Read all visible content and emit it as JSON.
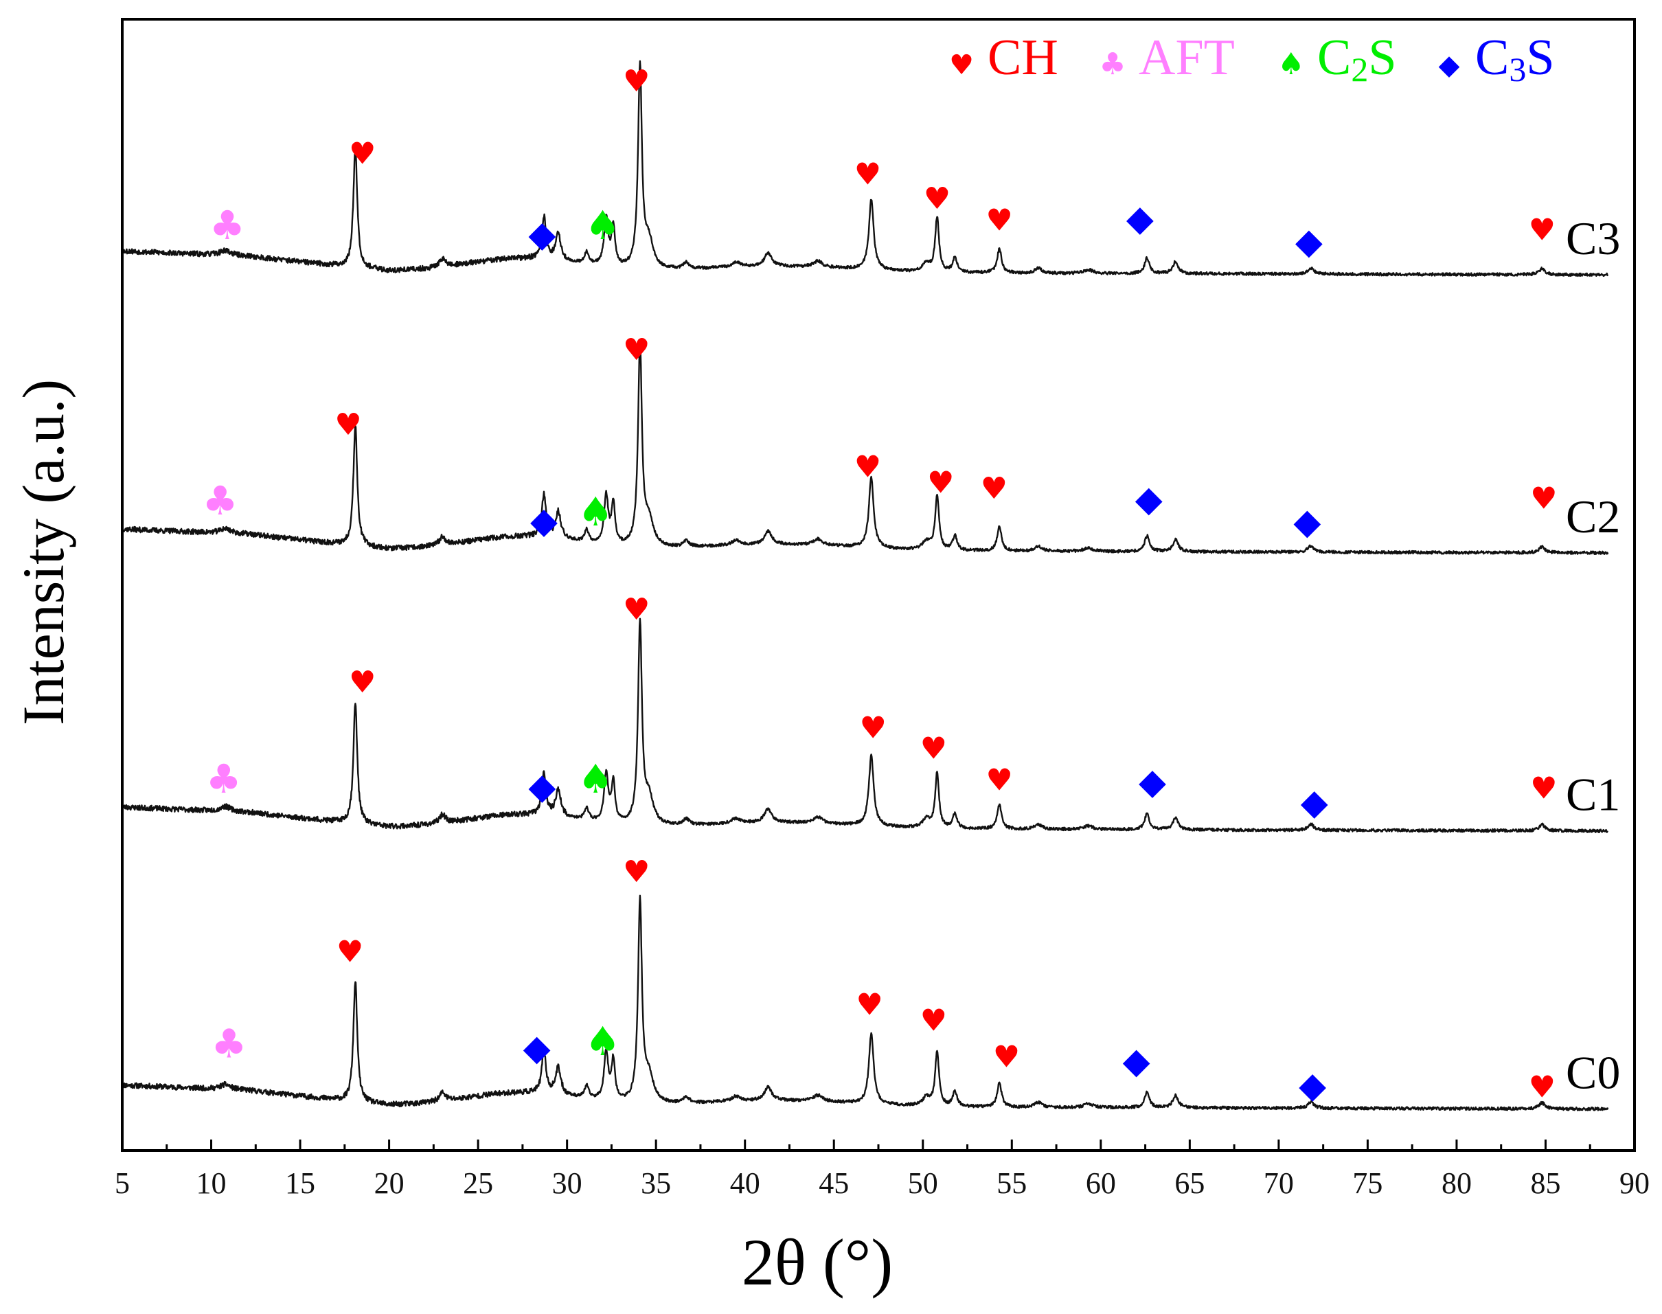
{
  "chart_data": {
    "type": "line",
    "title": "",
    "xlabel": "2θ (°)",
    "ylabel": "Intensity (a.u.)",
    "xlim": [
      5,
      90
    ],
    "xticks": [
      5,
      10,
      15,
      20,
      25,
      30,
      35,
      40,
      45,
      50,
      55,
      60,
      65,
      70,
      75,
      80,
      85,
      90
    ],
    "xtick_labels": [
      "5",
      "10",
      "15",
      "20",
      "25",
      "30",
      "35",
      "40",
      "45",
      "50",
      "55",
      "60",
      "65",
      "70",
      "75",
      "80",
      "85",
      "90"
    ],
    "yticks": "none",
    "grid": false,
    "legend_position": "top-right",
    "legend": [
      {
        "symbol": "heart",
        "label_main": "CH",
        "label_sub": "",
        "label_tail": "",
        "color": "#ff0000"
      },
      {
        "symbol": "club",
        "label_main": "AFT",
        "label_sub": "",
        "label_tail": "",
        "color": "#ff7fff"
      },
      {
        "symbol": "spade",
        "label_main": "C",
        "label_sub": "2",
        "label_tail": "S",
        "color": "#00ee00"
      },
      {
        "symbol": "diamond",
        "label_main": "C",
        "label_sub": "3",
        "label_tail": "S",
        "color": "#0000ff"
      }
    ],
    "phase_colors": {
      "CH": "#ff0000",
      "AFT": "#ff7fff",
      "C2S": "#00ee00",
      "C3S": "#0000ff"
    },
    "peaks": [
      {
        "x": 10.8,
        "h": 0.04,
        "w": 0.35
      },
      {
        "x": 18.1,
        "h": 1.0,
        "w": 0.13
      },
      {
        "x": 23.0,
        "h": 0.07,
        "w": 0.2
      },
      {
        "x": 28.7,
        "h": 0.35,
        "w": 0.14
      },
      {
        "x": 29.5,
        "h": 0.22,
        "w": 0.18
      },
      {
        "x": 31.1,
        "h": 0.1,
        "w": 0.14
      },
      {
        "x": 32.2,
        "h": 0.4,
        "w": 0.14
      },
      {
        "x": 32.6,
        "h": 0.33,
        "w": 0.12
      },
      {
        "x": 34.1,
        "h": 1.65,
        "w": 0.13
      },
      {
        "x": 34.6,
        "h": 0.22,
        "w": 0.3
      },
      {
        "x": 36.7,
        "h": 0.05,
        "w": 0.2
      },
      {
        "x": 39.5,
        "h": 0.04,
        "w": 0.3
      },
      {
        "x": 41.3,
        "h": 0.11,
        "w": 0.25
      },
      {
        "x": 44.1,
        "h": 0.05,
        "w": 0.3
      },
      {
        "x": 47.1,
        "h": 0.58,
        "w": 0.16
      },
      {
        "x": 50.2,
        "h": 0.07,
        "w": 0.25
      },
      {
        "x": 50.8,
        "h": 0.45,
        "w": 0.13
      },
      {
        "x": 51.8,
        "h": 0.12,
        "w": 0.15
      },
      {
        "x": 54.3,
        "h": 0.2,
        "w": 0.15
      },
      {
        "x": 56.5,
        "h": 0.04,
        "w": 0.25
      },
      {
        "x": 59.3,
        "h": 0.03,
        "w": 0.3
      },
      {
        "x": 62.6,
        "h": 0.13,
        "w": 0.16
      },
      {
        "x": 64.2,
        "h": 0.1,
        "w": 0.18
      },
      {
        "x": 71.8,
        "h": 0.05,
        "w": 0.2
      },
      {
        "x": 84.8,
        "h": 0.05,
        "w": 0.2
      }
    ],
    "series": [
      {
        "name": "C0",
        "offset": 0,
        "seed": 11,
        "annotations": [
          {
            "phase": "AFT",
            "x": 11.0,
            "y": 0.43
          },
          {
            "phase": "CH",
            "x": 17.8,
            "y": 1.22
          },
          {
            "phase": "C3S",
            "x": 28.3,
            "y": 0.41
          },
          {
            "phase": "C2S",
            "x": 32.0,
            "y": 0.45
          },
          {
            "phase": "CH",
            "x": 33.9,
            "y": 1.88
          },
          {
            "phase": "CH",
            "x": 47.0,
            "y": 0.78
          },
          {
            "phase": "CH",
            "x": 50.6,
            "y": 0.65
          },
          {
            "phase": "CH",
            "x": 54.7,
            "y": 0.35
          },
          {
            "phase": "C3S",
            "x": 62.0,
            "y": 0.3
          },
          {
            "phase": "C3S",
            "x": 71.9,
            "y": 0.1
          },
          {
            "phase": "CH",
            "x": 84.8,
            "y": 0.1
          }
        ]
      },
      {
        "name": "C1",
        "offset": 2.3,
        "seed": 23,
        "annotations": [
          {
            "phase": "AFT",
            "x": 10.7,
            "y": 0.32
          },
          {
            "phase": "CH",
            "x": 18.5,
            "y": 1.15
          },
          {
            "phase": "C3S",
            "x": 28.6,
            "y": 0.27
          },
          {
            "phase": "C2S",
            "x": 31.6,
            "y": 0.32
          },
          {
            "phase": "CH",
            "x": 33.9,
            "y": 1.75
          },
          {
            "phase": "CH",
            "x": 47.2,
            "y": 0.77
          },
          {
            "phase": "CH",
            "x": 50.6,
            "y": 0.6
          },
          {
            "phase": "CH",
            "x": 54.3,
            "y": 0.34
          },
          {
            "phase": "C3S",
            "x": 62.9,
            "y": 0.31
          },
          {
            "phase": "C3S",
            "x": 72.0,
            "y": 0.14
          },
          {
            "phase": "CH",
            "x": 84.9,
            "y": 0.27
          }
        ]
      },
      {
        "name": "C2",
        "offset": 4.6,
        "seed": 37,
        "annotations": [
          {
            "phase": "AFT",
            "x": 10.5,
            "y": 0.32
          },
          {
            "phase": "CH",
            "x": 17.7,
            "y": 0.98
          },
          {
            "phase": "C3S",
            "x": 28.7,
            "y": 0.17
          },
          {
            "phase": "C2S",
            "x": 31.6,
            "y": 0.23
          },
          {
            "phase": "CH",
            "x": 33.9,
            "y": 1.6
          },
          {
            "phase": "CH",
            "x": 46.9,
            "y": 0.63
          },
          {
            "phase": "CH",
            "x": 51.0,
            "y": 0.5
          },
          {
            "phase": "CH",
            "x": 54.0,
            "y": 0.45
          },
          {
            "phase": "C3S",
            "x": 62.7,
            "y": 0.35
          },
          {
            "phase": "C3S",
            "x": 71.6,
            "y": 0.16
          },
          {
            "phase": "CH",
            "x": 84.9,
            "y": 0.37
          }
        ]
      },
      {
        "name": "C3",
        "offset": 6.9,
        "seed": 53,
        "annotations": [
          {
            "phase": "AFT",
            "x": 10.9,
            "y": 0.3
          },
          {
            "phase": "CH",
            "x": 18.5,
            "y": 0.92
          },
          {
            "phase": "C3S",
            "x": 28.6,
            "y": 0.24
          },
          {
            "phase": "C2S",
            "x": 32.0,
            "y": 0.3
          },
          {
            "phase": "CH",
            "x": 33.9,
            "y": 1.52
          },
          {
            "phase": "CH",
            "x": 46.9,
            "y": 0.75
          },
          {
            "phase": "CH",
            "x": 50.8,
            "y": 0.55
          },
          {
            "phase": "CH",
            "x": 54.3,
            "y": 0.37
          },
          {
            "phase": "C3S",
            "x": 62.2,
            "y": 0.37
          },
          {
            "phase": "C3S",
            "x": 71.7,
            "y": 0.18
          },
          {
            "phase": "CH",
            "x": 84.8,
            "y": 0.29
          }
        ]
      }
    ]
  },
  "symbols": {
    "heart": "♥",
    "club": "♣",
    "spade": "♠",
    "diamond": "◆"
  }
}
